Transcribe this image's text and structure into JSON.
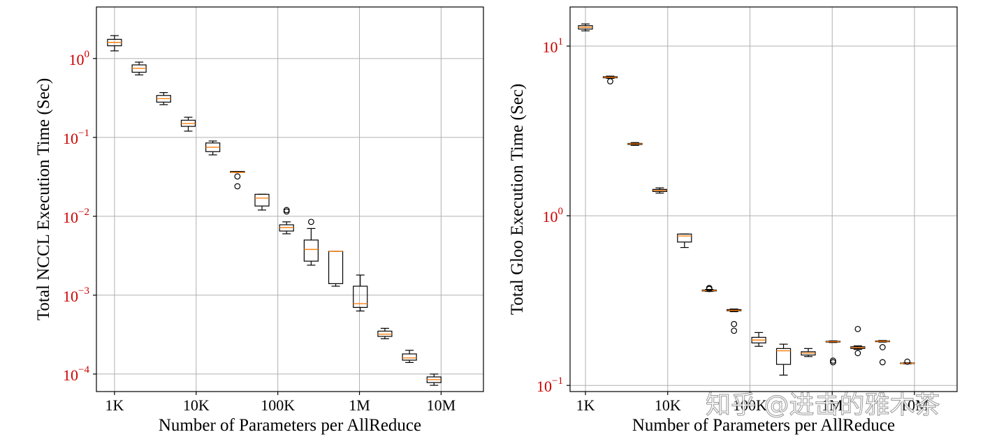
{
  "watermark": "知乎 @进击的雅木茶",
  "chart_data": [
    {
      "type": "boxplot",
      "xlabel": "Number of Parameters per AllReduce",
      "ylabel": "Total NCCL Execution Time (Sec)",
      "x_scale": "log",
      "y_scale": "log",
      "xlim": [
        600,
        33000000
      ],
      "ylim": [
        6e-05,
        4.5
      ],
      "grid": true,
      "ytick_color": "#cc0000",
      "x_ticks": [
        {
          "value": 1000,
          "label": "1K"
        },
        {
          "value": 10000,
          "label": "10K"
        },
        {
          "value": 100000,
          "label": "100K"
        },
        {
          "value": 1000000,
          "label": "1M"
        },
        {
          "value": 10000000,
          "label": "10M"
        }
      ],
      "y_ticks": [
        {
          "value": 1,
          "base": "10",
          "exp": "0"
        },
        {
          "value": 0.1,
          "base": "10",
          "exp": "−1"
        },
        {
          "value": 0.01,
          "base": "10",
          "exp": "−2"
        },
        {
          "value": 0.001,
          "base": "10",
          "exp": "−3"
        },
        {
          "value": 0.0001,
          "base": "10",
          "exp": "−4"
        }
      ],
      "boxes": [
        {
          "x": 1000,
          "whislo": 1.25,
          "q1": 1.45,
          "med": 1.6,
          "q3": 1.75,
          "whishi": 1.95,
          "fliers": []
        },
        {
          "x": 2000,
          "whislo": 0.62,
          "q1": 0.67,
          "med": 0.75,
          "q3": 0.83,
          "whishi": 0.9,
          "fliers": []
        },
        {
          "x": 4000,
          "whislo": 0.26,
          "q1": 0.28,
          "med": 0.31,
          "q3": 0.34,
          "whishi": 0.37,
          "fliers": []
        },
        {
          "x": 8000,
          "whislo": 0.12,
          "q1": 0.138,
          "med": 0.15,
          "q3": 0.165,
          "whishi": 0.18,
          "fliers": []
        },
        {
          "x": 16000,
          "whislo": 0.06,
          "q1": 0.066,
          "med": 0.075,
          "q3": 0.085,
          "whishi": 0.09,
          "fliers": []
        },
        {
          "x": 32000,
          "whislo": 0.036,
          "q1": 0.036,
          "med": 0.036,
          "q3": 0.037,
          "whishi": 0.037,
          "fliers": [
            0.032,
            0.024
          ]
        },
        {
          "x": 64000,
          "whislo": 0.012,
          "q1": 0.0135,
          "med": 0.017,
          "q3": 0.019,
          "whishi": 0.019,
          "fliers": []
        },
        {
          "x": 128000,
          "whislo": 0.006,
          "q1": 0.0065,
          "med": 0.0072,
          "q3": 0.0078,
          "whishi": 0.0085,
          "fliers": [
            0.0115,
            0.012
          ]
        },
        {
          "x": 256000,
          "whislo": 0.0024,
          "q1": 0.0027,
          "med": 0.0038,
          "q3": 0.005,
          "whishi": 0.007,
          "fliers": [
            0.0085
          ]
        },
        {
          "x": 512000,
          "whislo": 0.0013,
          "q1": 0.0014,
          "med": 0.0036,
          "q3": 0.0036,
          "whishi": 0.0036,
          "fliers": []
        },
        {
          "x": 1024000,
          "whislo": 0.00063,
          "q1": 0.0007,
          "med": 0.00078,
          "q3": 0.0013,
          "whishi": 0.0018,
          "fliers": []
        },
        {
          "x": 2048000,
          "whislo": 0.00028,
          "q1": 0.0003,
          "med": 0.00032,
          "q3": 0.00035,
          "whishi": 0.00038,
          "fliers": []
        },
        {
          "x": 4096000,
          "whislo": 0.00014,
          "q1": 0.00015,
          "med": 0.00016,
          "q3": 0.00018,
          "whishi": 0.0002,
          "fliers": []
        },
        {
          "x": 8192000,
          "whislo": 7.2e-05,
          "q1": 7.8e-05,
          "med": 8.5e-05,
          "q3": 9.2e-05,
          "whishi": 0.0001,
          "fliers": []
        }
      ]
    },
    {
      "type": "boxplot",
      "xlabel": "Number of Parameters per AllReduce",
      "ylabel": "Total Gloo Execution Time (Sec)",
      "x_scale": "log",
      "y_scale": "log",
      "xlim": [
        650,
        33000000
      ],
      "ylim": [
        0.092,
        17
      ],
      "grid": true,
      "ytick_color": "#cc0000",
      "x_ticks": [
        {
          "value": 1000,
          "label": "1K"
        },
        {
          "value": 10000,
          "label": "10K"
        },
        {
          "value": 100000,
          "label": "100K"
        },
        {
          "value": 1000000,
          "label": "1M"
        },
        {
          "value": 10000000,
          "label": "10M"
        }
      ],
      "y_ticks": [
        {
          "value": 10,
          "base": "10",
          "exp": "1"
        },
        {
          "value": 1,
          "base": "10",
          "exp": "0"
        },
        {
          "value": 0.1,
          "base": "10",
          "exp": "−1"
        }
      ],
      "boxes": [
        {
          "x": 1000,
          "whislo": 12.3,
          "q1": 12.6,
          "med": 12.9,
          "q3": 13.2,
          "whishi": 13.5,
          "fliers": []
        },
        {
          "x": 2000,
          "whislo": 6.45,
          "q1": 6.5,
          "med": 6.55,
          "q3": 6.6,
          "whishi": 6.65,
          "fliers": [
            6.2
          ]
        },
        {
          "x": 4000,
          "whislo": 2.6,
          "q1": 2.63,
          "med": 2.65,
          "q3": 2.67,
          "whishi": 2.7,
          "fliers": []
        },
        {
          "x": 8000,
          "whislo": 1.36,
          "q1": 1.39,
          "med": 1.41,
          "q3": 1.43,
          "whishi": 1.46,
          "fliers": []
        },
        {
          "x": 16000,
          "whislo": 0.65,
          "q1": 0.7,
          "med": 0.76,
          "q3": 0.78,
          "whishi": 0.78,
          "fliers": []
        },
        {
          "x": 32000,
          "whislo": 0.358,
          "q1": 0.36,
          "med": 0.362,
          "q3": 0.365,
          "whishi": 0.368,
          "fliers": [
            0.37,
            0.375
          ]
        },
        {
          "x": 64000,
          "whislo": 0.272,
          "q1": 0.275,
          "med": 0.277,
          "q3": 0.28,
          "whishi": 0.282,
          "fliers": [
            0.23,
            0.21
          ]
        },
        {
          "x": 128000,
          "whislo": 0.17,
          "q1": 0.178,
          "med": 0.185,
          "q3": 0.192,
          "whishi": 0.205,
          "fliers": []
        },
        {
          "x": 256000,
          "whislo": 0.115,
          "q1": 0.133,
          "med": 0.16,
          "q3": 0.165,
          "whishi": 0.175,
          "fliers": []
        },
        {
          "x": 512000,
          "whislo": 0.148,
          "q1": 0.151,
          "med": 0.155,
          "q3": 0.158,
          "whishi": 0.165,
          "fliers": []
        },
        {
          "x": 1024000,
          "whislo": 0.179,
          "q1": 0.18,
          "med": 0.181,
          "q3": 0.182,
          "whishi": 0.183,
          "fliers": [
            0.14,
            0.137
          ]
        },
        {
          "x": 2048000,
          "whislo": 0.163,
          "q1": 0.165,
          "med": 0.167,
          "q3": 0.169,
          "whishi": 0.171,
          "fliers": [
            0.215,
            0.155
          ]
        },
        {
          "x": 4096000,
          "whislo": 0.18,
          "q1": 0.181,
          "med": 0.182,
          "q3": 0.183,
          "whishi": 0.184,
          "fliers": [
            0.168,
            0.137
          ]
        },
        {
          "x": 8192000,
          "whislo": 0.134,
          "q1": 0.1345,
          "med": 0.135,
          "q3": 0.1355,
          "whishi": 0.136,
          "fliers": [
            0.138
          ]
        }
      ]
    }
  ]
}
